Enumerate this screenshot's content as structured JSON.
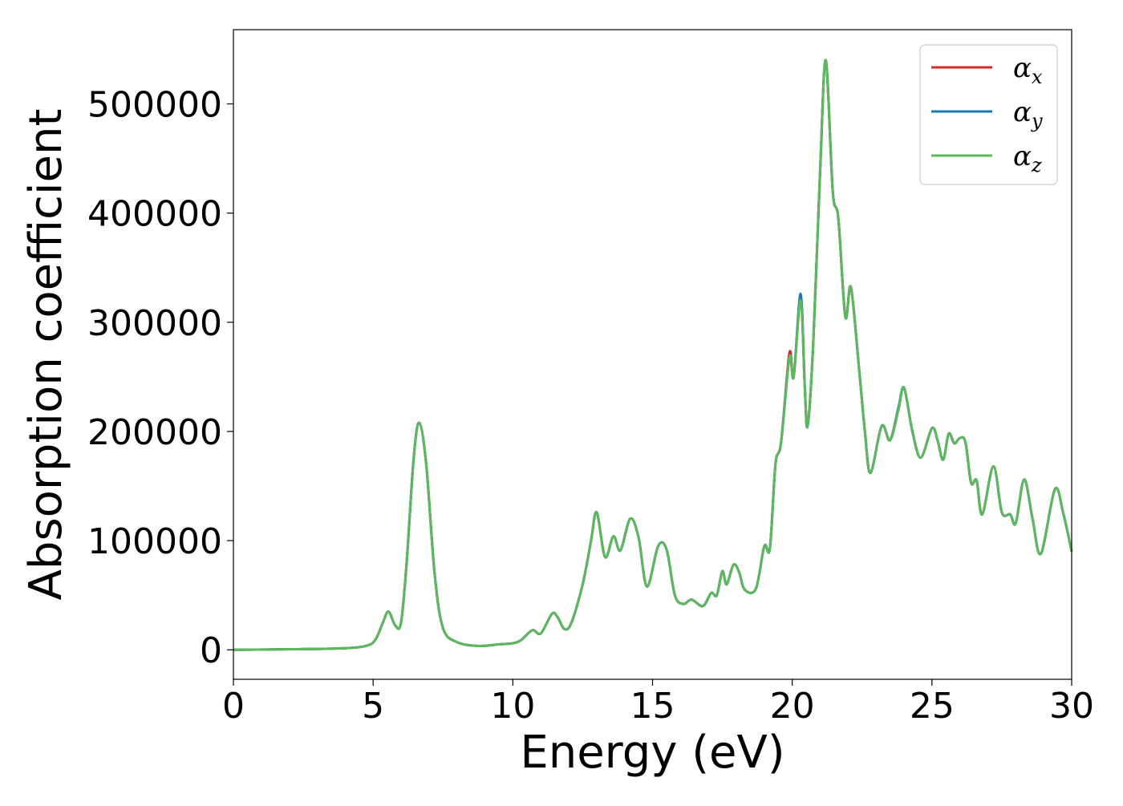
{
  "chart_data": {
    "type": "line",
    "title": "",
    "xlabel": "Energy (eV)",
    "ylabel": "Absorption coefficient",
    "xlim": [
      0,
      30
    ],
    "ylim": [
      -27000,
      568000
    ],
    "x_ticks": [
      "0",
      "5",
      "10",
      "15",
      "20",
      "25",
      "30"
    ],
    "y_ticks": [
      "0",
      "100000",
      "200000",
      "300000",
      "400000",
      "500000"
    ],
    "grid": false,
    "legend_position": "top-right",
    "series": [
      {
        "name": "αx",
        "color": "#d62728",
        "points": [
          [
            0,
            0
          ],
          [
            2,
            500
          ],
          [
            4,
            1500
          ],
          [
            4.8,
            4000
          ],
          [
            5.1,
            10000
          ],
          [
            5.35,
            25000
          ],
          [
            5.55,
            35000
          ],
          [
            5.8,
            22000
          ],
          [
            6.0,
            25000
          ],
          [
            6.2,
            80000
          ],
          [
            6.45,
            175000
          ],
          [
            6.65,
            208000
          ],
          [
            6.9,
            170000
          ],
          [
            7.2,
            70000
          ],
          [
            7.5,
            20000
          ],
          [
            8.0,
            7000
          ],
          [
            8.8,
            3500
          ],
          [
            9.5,
            5000
          ],
          [
            10.0,
            6000
          ],
          [
            10.3,
            9000
          ],
          [
            10.7,
            18000
          ],
          [
            11.0,
            15000
          ],
          [
            11.4,
            33000
          ],
          [
            11.6,
            30000
          ],
          [
            11.85,
            19000
          ],
          [
            12.1,
            25000
          ],
          [
            12.5,
            60000
          ],
          [
            12.8,
            100000
          ],
          [
            13.0,
            126000
          ],
          [
            13.3,
            85000
          ],
          [
            13.6,
            104000
          ],
          [
            13.85,
            91000
          ],
          [
            14.2,
            120000
          ],
          [
            14.5,
            103000
          ],
          [
            14.8,
            58000
          ],
          [
            15.2,
            95000
          ],
          [
            15.5,
            92000
          ],
          [
            15.8,
            50000
          ],
          [
            16.1,
            42000
          ],
          [
            16.4,
            46000
          ],
          [
            16.8,
            40000
          ],
          [
            17.1,
            52000
          ],
          [
            17.3,
            50000
          ],
          [
            17.5,
            72000
          ],
          [
            17.65,
            60000
          ],
          [
            17.9,
            78000
          ],
          [
            18.1,
            71000
          ],
          [
            18.3,
            55000
          ],
          [
            18.7,
            56000
          ],
          [
            19.0,
            95000
          ],
          [
            19.2,
            93000
          ],
          [
            19.4,
            170000
          ],
          [
            19.6,
            190000
          ],
          [
            19.9,
            272000
          ],
          [
            20.05,
            250000
          ],
          [
            20.3,
            322000
          ],
          [
            20.45,
            240000
          ],
          [
            20.55,
            205000
          ],
          [
            20.75,
            280000
          ],
          [
            21.0,
            440000
          ],
          [
            21.2,
            540000
          ],
          [
            21.45,
            420000
          ],
          [
            21.65,
            395000
          ],
          [
            21.9,
            305000
          ],
          [
            22.1,
            332000
          ],
          [
            22.4,
            255000
          ],
          [
            22.6,
            200000
          ],
          [
            22.8,
            162000
          ],
          [
            23.2,
            205000
          ],
          [
            23.5,
            192000
          ],
          [
            23.8,
            220000
          ],
          [
            24.0,
            240000
          ],
          [
            24.3,
            200000
          ],
          [
            24.6,
            176000
          ],
          [
            25.0,
            203000
          ],
          [
            25.2,
            192000
          ],
          [
            25.4,
            174000
          ],
          [
            25.6,
            198000
          ],
          [
            25.8,
            189000
          ],
          [
            26.0,
            194000
          ],
          [
            26.2,
            190000
          ],
          [
            26.4,
            153000
          ],
          [
            26.6,
            155000
          ],
          [
            26.8,
            124000
          ],
          [
            27.2,
            168000
          ],
          [
            27.5,
            126000
          ],
          [
            27.8,
            124000
          ],
          [
            28.0,
            116000
          ],
          [
            28.3,
            156000
          ],
          [
            28.6,
            120000
          ],
          [
            28.9,
            88000
          ],
          [
            29.4,
            147000
          ],
          [
            29.7,
            125000
          ],
          [
            30.0,
            90000
          ]
        ]
      },
      {
        "name": "αy",
        "color": "#1f77b4",
        "points": [
          [
            0,
            0
          ],
          [
            2,
            500
          ],
          [
            4,
            1500
          ],
          [
            4.8,
            4000
          ],
          [
            5.1,
            10000
          ],
          [
            5.35,
            25000
          ],
          [
            5.55,
            35000
          ],
          [
            5.8,
            22000
          ],
          [
            6.0,
            25000
          ],
          [
            6.2,
            80000
          ],
          [
            6.45,
            175000
          ],
          [
            6.65,
            208000
          ],
          [
            6.9,
            170000
          ],
          [
            7.2,
            70000
          ],
          [
            7.5,
            20000
          ],
          [
            8.0,
            7000
          ],
          [
            8.8,
            3500
          ],
          [
            9.5,
            5000
          ],
          [
            10.0,
            6000
          ],
          [
            10.3,
            9000
          ],
          [
            10.7,
            18000
          ],
          [
            11.0,
            15000
          ],
          [
            11.4,
            33000
          ],
          [
            11.6,
            30000
          ],
          [
            11.85,
            19000
          ],
          [
            12.1,
            25000
          ],
          [
            12.5,
            60000
          ],
          [
            12.8,
            100000
          ],
          [
            13.0,
            126000
          ],
          [
            13.3,
            85000
          ],
          [
            13.6,
            104000
          ],
          [
            13.85,
            91000
          ],
          [
            14.2,
            120000
          ],
          [
            14.5,
            103000
          ],
          [
            14.8,
            58000
          ],
          [
            15.2,
            95000
          ],
          [
            15.5,
            92000
          ],
          [
            15.8,
            50000
          ],
          [
            16.1,
            42000
          ],
          [
            16.4,
            46000
          ],
          [
            16.8,
            40000
          ],
          [
            17.1,
            52000
          ],
          [
            17.3,
            50000
          ],
          [
            17.5,
            72000
          ],
          [
            17.65,
            60000
          ],
          [
            17.9,
            78000
          ],
          [
            18.1,
            71000
          ],
          [
            18.3,
            55000
          ],
          [
            18.7,
            56000
          ],
          [
            19.0,
            95000
          ],
          [
            19.2,
            93000
          ],
          [
            19.4,
            170000
          ],
          [
            19.6,
            190000
          ],
          [
            19.9,
            268000
          ],
          [
            20.05,
            250000
          ],
          [
            20.3,
            326000
          ],
          [
            20.45,
            240000
          ],
          [
            20.55,
            205000
          ],
          [
            20.75,
            280000
          ],
          [
            21.0,
            440000
          ],
          [
            21.2,
            540000
          ],
          [
            21.45,
            420000
          ],
          [
            21.65,
            395000
          ],
          [
            21.9,
            305000
          ],
          [
            22.1,
            332000
          ],
          [
            22.4,
            255000
          ],
          [
            22.6,
            200000
          ],
          [
            22.8,
            162000
          ],
          [
            23.2,
            205000
          ],
          [
            23.5,
            192000
          ],
          [
            23.8,
            222000
          ],
          [
            24.0,
            240000
          ],
          [
            24.3,
            200000
          ],
          [
            24.6,
            176000
          ],
          [
            25.0,
            203000
          ],
          [
            25.2,
            192000
          ],
          [
            25.4,
            174000
          ],
          [
            25.6,
            198000
          ],
          [
            25.8,
            189000
          ],
          [
            26.0,
            194000
          ],
          [
            26.2,
            190000
          ],
          [
            26.4,
            153000
          ],
          [
            26.6,
            155000
          ],
          [
            26.8,
            124000
          ],
          [
            27.2,
            168000
          ],
          [
            27.5,
            126000
          ],
          [
            27.8,
            124000
          ],
          [
            28.0,
            116000
          ],
          [
            28.3,
            156000
          ],
          [
            28.6,
            120000
          ],
          [
            28.9,
            88000
          ],
          [
            29.4,
            147000
          ],
          [
            29.7,
            125000
          ],
          [
            30.0,
            90000
          ]
        ]
      },
      {
        "name": "αz",
        "color": "#5cb85c",
        "points": [
          [
            0,
            0
          ],
          [
            2,
            500
          ],
          [
            4,
            1500
          ],
          [
            4.8,
            4000
          ],
          [
            5.1,
            10000
          ],
          [
            5.35,
            25000
          ],
          [
            5.55,
            35000
          ],
          [
            5.8,
            22000
          ],
          [
            6.0,
            25000
          ],
          [
            6.2,
            80000
          ],
          [
            6.45,
            175000
          ],
          [
            6.65,
            208000
          ],
          [
            6.9,
            170000
          ],
          [
            7.2,
            70000
          ],
          [
            7.5,
            20000
          ],
          [
            8.0,
            7000
          ],
          [
            8.8,
            3500
          ],
          [
            9.5,
            5000
          ],
          [
            10.0,
            6000
          ],
          [
            10.3,
            9000
          ],
          [
            10.7,
            18000
          ],
          [
            11.0,
            15000
          ],
          [
            11.4,
            33000
          ],
          [
            11.6,
            30000
          ],
          [
            11.85,
            19000
          ],
          [
            12.1,
            25000
          ],
          [
            12.5,
            60000
          ],
          [
            12.8,
            100000
          ],
          [
            13.0,
            126000
          ],
          [
            13.3,
            85000
          ],
          [
            13.6,
            104000
          ],
          [
            13.85,
            91000
          ],
          [
            14.2,
            120000
          ],
          [
            14.5,
            103000
          ],
          [
            14.8,
            58000
          ],
          [
            15.2,
            95000
          ],
          [
            15.5,
            92000
          ],
          [
            15.8,
            50000
          ],
          [
            16.1,
            42000
          ],
          [
            16.4,
            46000
          ],
          [
            16.8,
            40000
          ],
          [
            17.1,
            52000
          ],
          [
            17.3,
            50000
          ],
          [
            17.5,
            72000
          ],
          [
            17.65,
            60000
          ],
          [
            17.9,
            78000
          ],
          [
            18.1,
            71000
          ],
          [
            18.3,
            55000
          ],
          [
            18.7,
            56000
          ],
          [
            19.0,
            95000
          ],
          [
            19.2,
            93000
          ],
          [
            19.4,
            170000
          ],
          [
            19.6,
            190000
          ],
          [
            19.9,
            268000
          ],
          [
            20.05,
            250000
          ],
          [
            20.3,
            320000
          ],
          [
            20.45,
            240000
          ],
          [
            20.55,
            205000
          ],
          [
            20.75,
            280000
          ],
          [
            21.0,
            440000
          ],
          [
            21.2,
            540000
          ],
          [
            21.45,
            420000
          ],
          [
            21.65,
            395000
          ],
          [
            21.9,
            305000
          ],
          [
            22.1,
            332000
          ],
          [
            22.4,
            255000
          ],
          [
            22.6,
            200000
          ],
          [
            22.8,
            162000
          ],
          [
            23.2,
            205000
          ],
          [
            23.5,
            192000
          ],
          [
            23.8,
            220000
          ],
          [
            24.0,
            240000
          ],
          [
            24.3,
            200000
          ],
          [
            24.6,
            176000
          ],
          [
            25.0,
            203000
          ],
          [
            25.2,
            192000
          ],
          [
            25.4,
            174000
          ],
          [
            25.6,
            198000
          ],
          [
            25.8,
            189000
          ],
          [
            26.0,
            194000
          ],
          [
            26.2,
            190000
          ],
          [
            26.4,
            153000
          ],
          [
            26.6,
            155000
          ],
          [
            26.8,
            124000
          ],
          [
            27.2,
            168000
          ],
          [
            27.5,
            126000
          ],
          [
            27.8,
            124000
          ],
          [
            28.0,
            116000
          ],
          [
            28.3,
            156000
          ],
          [
            28.6,
            120000
          ],
          [
            28.9,
            88000
          ],
          [
            29.4,
            147000
          ],
          [
            29.7,
            125000
          ],
          [
            30.0,
            90000
          ]
        ]
      }
    ],
    "legend": [
      {
        "base": "α",
        "sub": "x"
      },
      {
        "base": "α",
        "sub": "y"
      },
      {
        "base": "α",
        "sub": "z"
      }
    ]
  }
}
